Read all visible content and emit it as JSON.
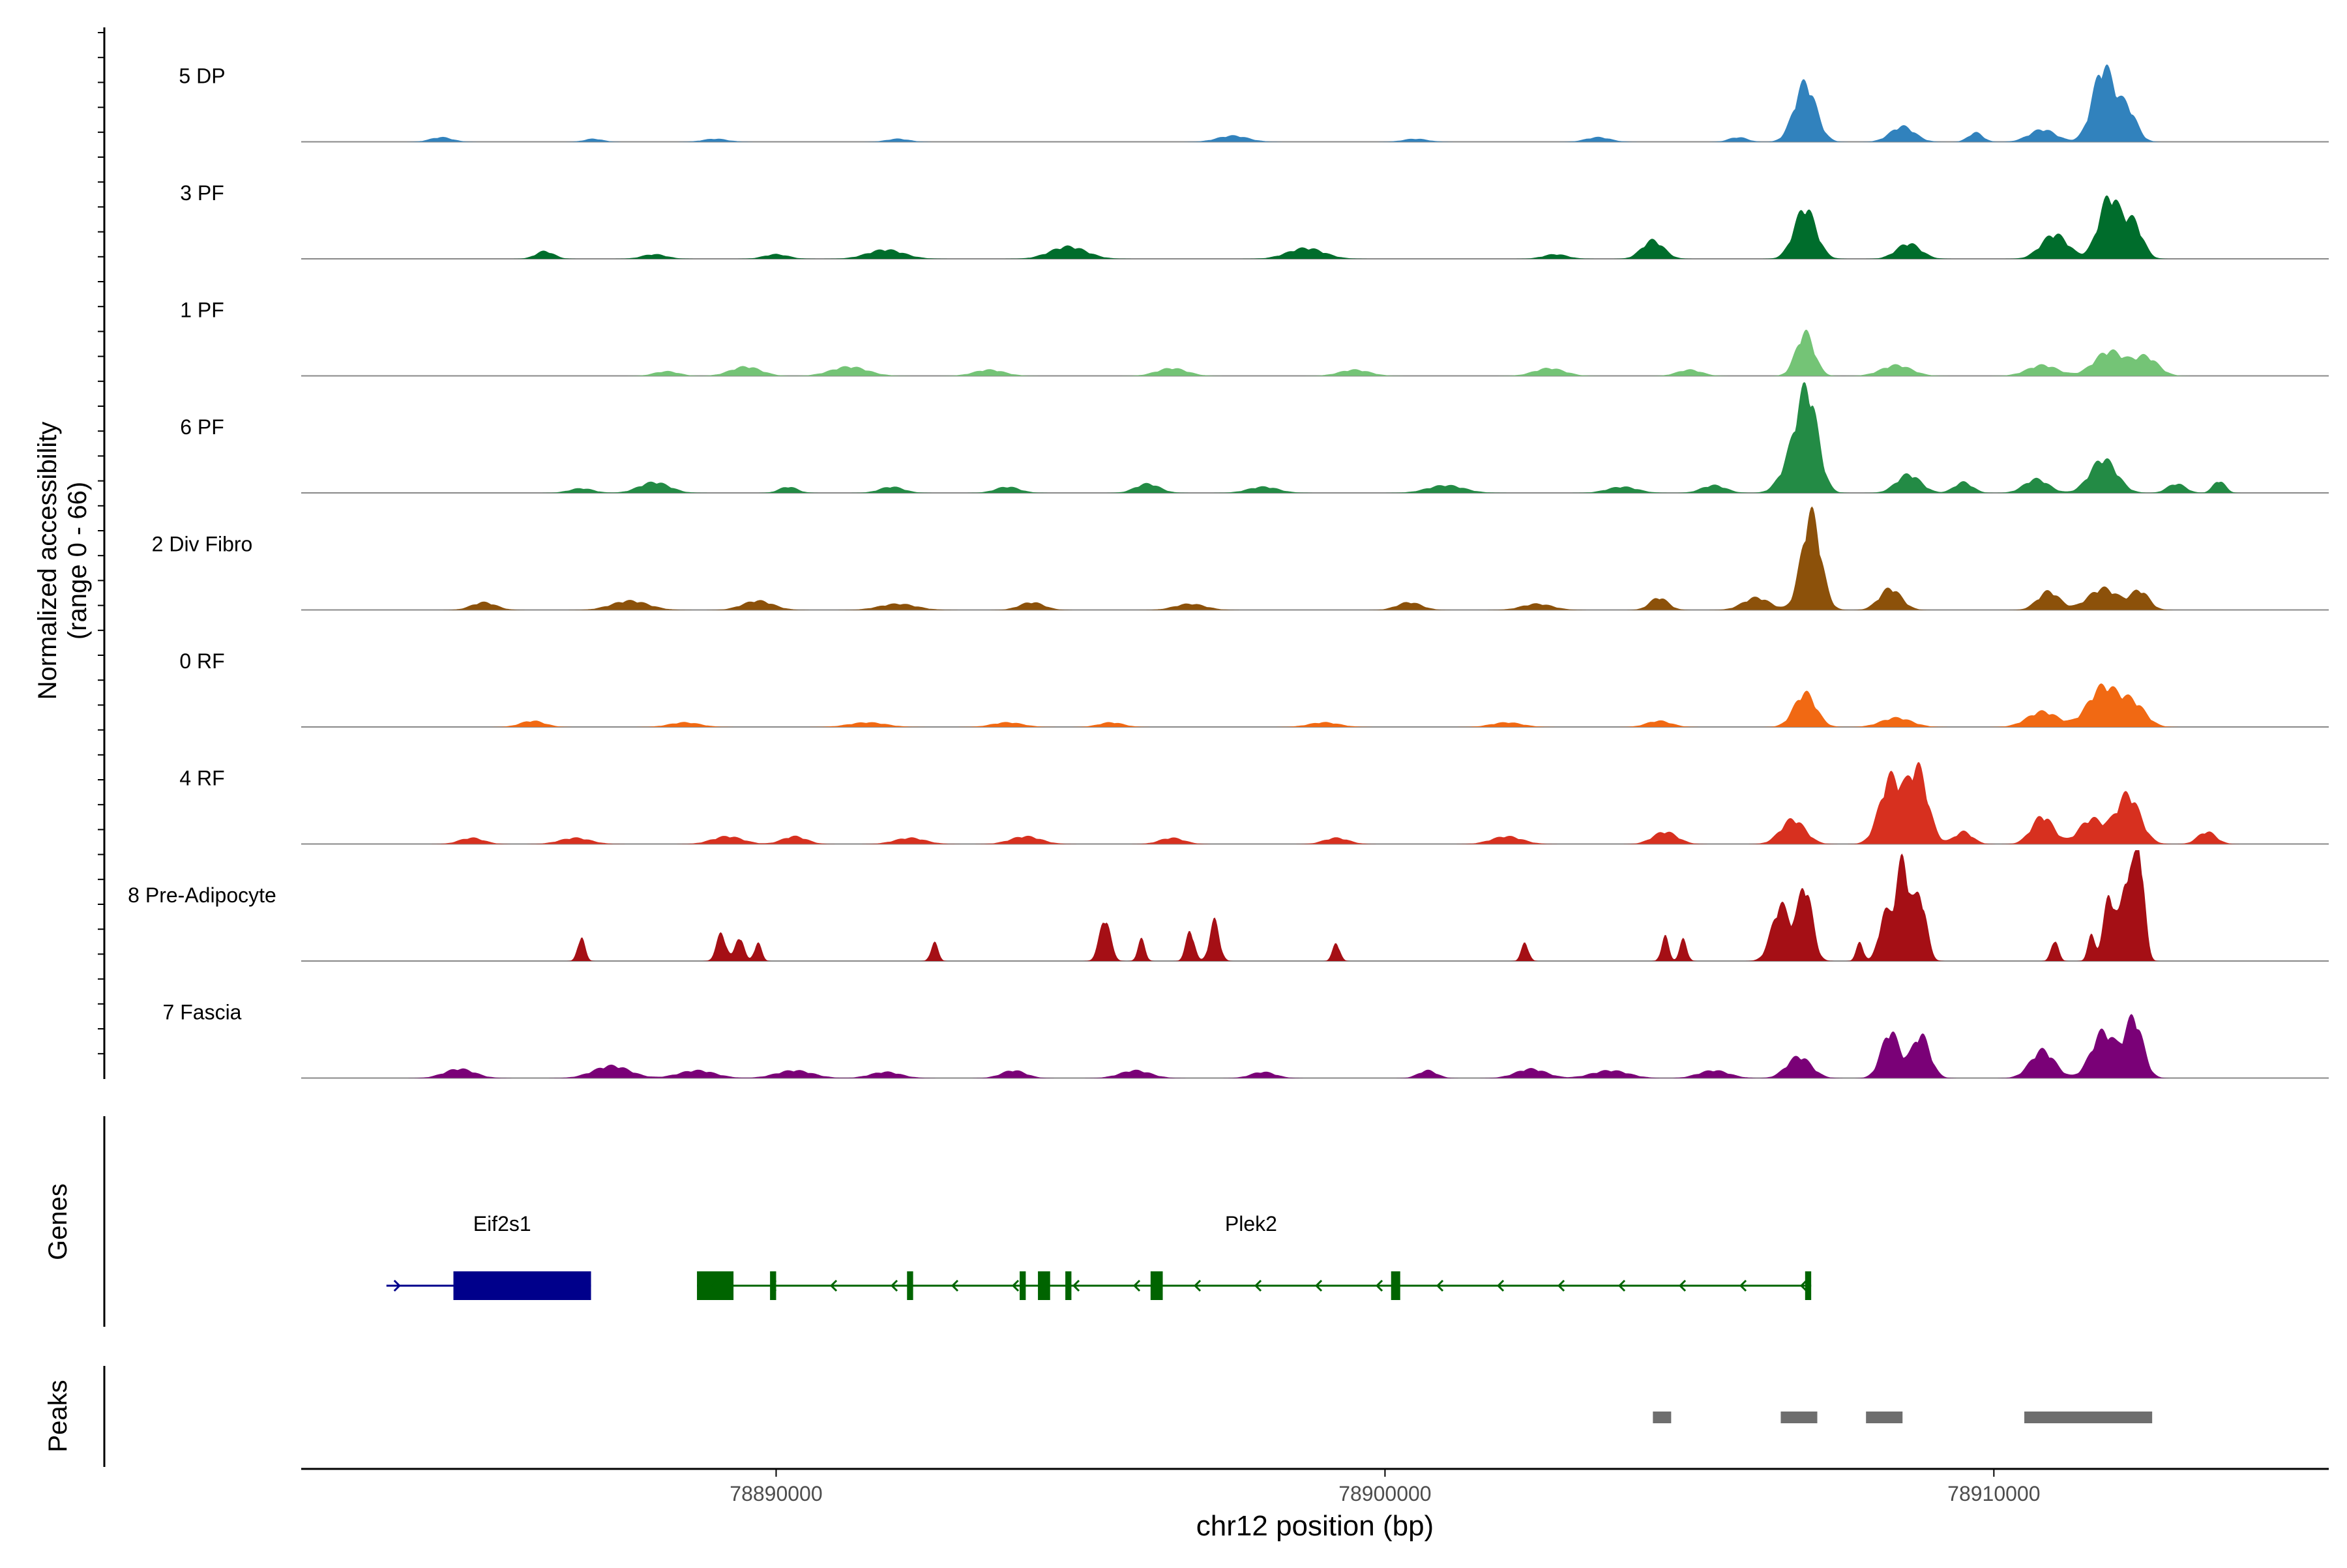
{
  "chart_data": {
    "type": "area",
    "chromosome": "chr12",
    "xlim": [
      78882200,
      78915500
    ],
    "xlabel": "chr12 position (bp)",
    "x_ticks": [
      78890000,
      78900000,
      78910000
    ],
    "x_tick_labels": [
      "78890000",
      "78900000",
      "78910000"
    ],
    "ylabel": "Normalized accessibility",
    "ylabel_sub": "(range 0 - 66)",
    "ylim": [
      0,
      66
    ],
    "grid": false,
    "tracks": [
      {
        "name": "5 DP",
        "color": "#3182BD",
        "peaks": [
          [
            78884500,
            3,
            180
          ],
          [
            78887000,
            2,
            150
          ],
          [
            78889000,
            2,
            200
          ],
          [
            78892000,
            2,
            180
          ],
          [
            78897500,
            4,
            250
          ],
          [
            78900500,
            2,
            200
          ],
          [
            78903500,
            3,
            200
          ],
          [
            78905800,
            3,
            150
          ],
          [
            78906900,
            38,
            180
          ],
          [
            78908500,
            10,
            200
          ],
          [
            78909700,
            6,
            120
          ],
          [
            78910800,
            8,
            220
          ],
          [
            78911800,
            48,
            180
          ],
          [
            78912200,
            20,
            150
          ]
        ]
      },
      {
        "name": "3 PF",
        "color": "#006D2C",
        "peaks": [
          [
            78886200,
            5,
            150
          ],
          [
            78888000,
            3,
            200
          ],
          [
            78890000,
            3,
            200
          ],
          [
            78891800,
            6,
            300
          ],
          [
            78894800,
            8,
            300
          ],
          [
            78898700,
            7,
            300
          ],
          [
            78902800,
            3,
            200
          ],
          [
            78904400,
            12,
            180
          ],
          [
            78906900,
            33,
            180
          ],
          [
            78908600,
            10,
            200
          ],
          [
            78911000,
            16,
            220
          ],
          [
            78911900,
            40,
            180
          ],
          [
            78912300,
            22,
            150
          ]
        ]
      },
      {
        "name": "1 PF",
        "color": "#74C476",
        "peaks": [
          [
            78888200,
            3,
            200
          ],
          [
            78889500,
            6,
            250
          ],
          [
            78891200,
            6,
            300
          ],
          [
            78893500,
            4,
            250
          ],
          [
            78896500,
            5,
            250
          ],
          [
            78899500,
            4,
            250
          ],
          [
            78902700,
            5,
            250
          ],
          [
            78905000,
            4,
            200
          ],
          [
            78906900,
            28,
            150
          ],
          [
            78908400,
            7,
            250
          ],
          [
            78910800,
            7,
            250
          ],
          [
            78911900,
            16,
            250
          ],
          [
            78912500,
            12,
            200
          ]
        ]
      },
      {
        "name": "6 PF",
        "color": "#238B45",
        "peaks": [
          [
            78886800,
            3,
            200
          ],
          [
            78888000,
            7,
            250
          ],
          [
            78890200,
            4,
            150
          ],
          [
            78891900,
            4,
            200
          ],
          [
            78893800,
            4,
            200
          ],
          [
            78896100,
            6,
            200
          ],
          [
            78898000,
            4,
            250
          ],
          [
            78901000,
            5,
            300
          ],
          [
            78903900,
            4,
            250
          ],
          [
            78905400,
            5,
            200
          ],
          [
            78906700,
            20,
            200
          ],
          [
            78906950,
            58,
            170
          ],
          [
            78908600,
            12,
            200
          ],
          [
            78909500,
            7,
            150
          ],
          [
            78910700,
            9,
            200
          ],
          [
            78911800,
            22,
            220
          ],
          [
            78913000,
            6,
            150
          ],
          [
            78913700,
            8,
            100
          ]
        ]
      },
      {
        "name": "2 Div Fibro",
        "color": "#8C510A",
        "peaks": [
          [
            78885200,
            5,
            200
          ],
          [
            78887600,
            6,
            300
          ],
          [
            78889700,
            6,
            250
          ],
          [
            78892000,
            4,
            300
          ],
          [
            78894200,
            5,
            200
          ],
          [
            78896800,
            4,
            250
          ],
          [
            78900400,
            5,
            200
          ],
          [
            78902500,
            4,
            250
          ],
          [
            78904500,
            8,
            150
          ],
          [
            78906100,
            8,
            220
          ],
          [
            78907000,
            62,
            160
          ],
          [
            78908300,
            14,
            180
          ],
          [
            78910900,
            12,
            180
          ],
          [
            78911800,
            14,
            250
          ],
          [
            78912400,
            12,
            150
          ]
        ]
      },
      {
        "name": "0 RF",
        "color": "#F16913",
        "peaks": [
          [
            78886000,
            4,
            200
          ],
          [
            78888500,
            3,
            250
          ],
          [
            78891500,
            3,
            300
          ],
          [
            78893800,
            3,
            250
          ],
          [
            78895500,
            3,
            200
          ],
          [
            78899000,
            3,
            250
          ],
          [
            78902000,
            3,
            250
          ],
          [
            78904500,
            4,
            200
          ],
          [
            78906900,
            22,
            180
          ],
          [
            78908400,
            6,
            250
          ],
          [
            78910800,
            10,
            250
          ],
          [
            78911800,
            26,
            250
          ],
          [
            78912300,
            14,
            200
          ]
        ]
      },
      {
        "name": "4 RF",
        "color": "#D7301F",
        "peaks": [
          [
            78885000,
            4,
            200
          ],
          [
            78886700,
            4,
            250
          ],
          [
            78889200,
            5,
            250
          ],
          [
            78890300,
            5,
            200
          ],
          [
            78892200,
            4,
            250
          ],
          [
            78894100,
            5,
            250
          ],
          [
            78896500,
            4,
            200
          ],
          [
            78899200,
            4,
            200
          ],
          [
            78902000,
            5,
            250
          ],
          [
            78904600,
            8,
            200
          ],
          [
            78906700,
            16,
            200
          ],
          [
            78908300,
            42,
            180
          ],
          [
            78908750,
            48,
            170
          ],
          [
            78909500,
            8,
            150
          ],
          [
            78910800,
            18,
            180
          ],
          [
            78911600,
            16,
            200
          ],
          [
            78912200,
            32,
            200
          ],
          [
            78913500,
            8,
            150
          ]
        ]
      },
      {
        "name": "8 Pre-Adipocyte",
        "color": "#A50F15",
        "peaks": [
          [
            78886800,
            16,
            60
          ],
          [
            78889100,
            18,
            80
          ],
          [
            78889400,
            16,
            70
          ],
          [
            78889700,
            12,
            60
          ],
          [
            78892600,
            12,
            60
          ],
          [
            78895400,
            28,
            90
          ],
          [
            78896000,
            14,
            60
          ],
          [
            78896800,
            20,
            70
          ],
          [
            78897200,
            26,
            80
          ],
          [
            78899200,
            12,
            60
          ],
          [
            78902300,
            12,
            60
          ],
          [
            78904600,
            16,
            60
          ],
          [
            78904900,
            14,
            60
          ],
          [
            78906500,
            36,
            150
          ],
          [
            78906900,
            48,
            120
          ],
          [
            78907800,
            12,
            60
          ],
          [
            78908200,
            28,
            100
          ],
          [
            78908500,
            64,
            120
          ],
          [
            78908800,
            40,
            100
          ],
          [
            78911000,
            14,
            60
          ],
          [
            78911600,
            16,
            60
          ],
          [
            78911900,
            42,
            100
          ],
          [
            78912200,
            56,
            100
          ],
          [
            78912400,
            66,
            80
          ]
        ]
      },
      {
        "name": "7 Fascia",
        "color": "#7A0177",
        "peaks": [
          [
            78884800,
            6,
            250
          ],
          [
            78887300,
            8,
            300
          ],
          [
            78888700,
            5,
            300
          ],
          [
            78890300,
            5,
            300
          ],
          [
            78891800,
            4,
            250
          ],
          [
            78893900,
            5,
            200
          ],
          [
            78895900,
            5,
            250
          ],
          [
            78898000,
            4,
            200
          ],
          [
            78900700,
            5,
            150
          ],
          [
            78902400,
            6,
            250
          ],
          [
            78903700,
            5,
            300
          ],
          [
            78905400,
            5,
            250
          ],
          [
            78906800,
            14,
            200
          ],
          [
            78908300,
            30,
            150
          ],
          [
            78908800,
            28,
            150
          ],
          [
            78910800,
            18,
            200
          ],
          [
            78911800,
            30,
            200
          ],
          [
            78912300,
            38,
            150
          ]
        ]
      }
    ],
    "genes_label": "Genes",
    "genes": [
      {
        "name": "Eif2s1",
        "strand": "+",
        "color": "#00008B",
        "start": 78883600,
        "end": 78886960,
        "label_x": 78885500,
        "exons": [
          [
            78884700,
            78886960
          ]
        ]
      },
      {
        "name": "Plek2",
        "strand": "-",
        "color": "#006400",
        "start": 78888700,
        "end": 78907000,
        "label_x": 78897800,
        "exons": [
          [
            78888700,
            78889300
          ],
          [
            78889900,
            78890000
          ],
          [
            78892150,
            78892250
          ],
          [
            78894000,
            78894100
          ],
          [
            78894300,
            78894500
          ],
          [
            78894750,
            78894850
          ],
          [
            78896150,
            78896350
          ],
          [
            78900100,
            78900250
          ],
          [
            78906900,
            78907000
          ]
        ]
      }
    ],
    "peaks_label": "Peaks",
    "peak_regions": [
      [
        78904400,
        78904700
      ],
      [
        78906500,
        78907100
      ],
      [
        78907900,
        78908500
      ],
      [
        78910500,
        78912600
      ]
    ]
  }
}
